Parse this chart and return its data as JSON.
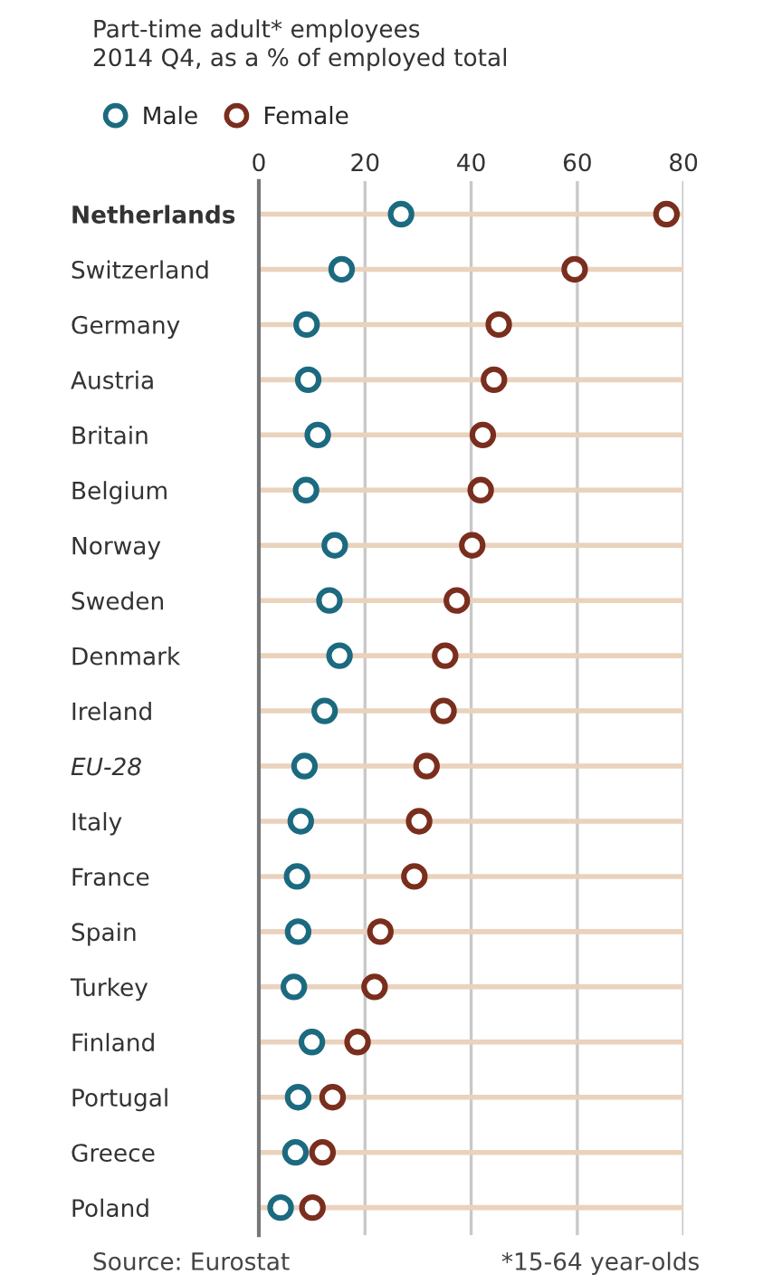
{
  "chart_data": {
    "type": "scatter",
    "subtitle": "Part-time adult* employees\n2014 Q4, as a % of employed total",
    "orientation": "horizontal",
    "categories": [
      "Netherlands",
      "Switzerland",
      "Germany",
      "Austria",
      "Britain",
      "Belgium",
      "Norway",
      "Sweden",
      "Denmark",
      "Ireland",
      "EU-28",
      "Italy",
      "France",
      "Spain",
      "Turkey",
      "Finland",
      "Portugal",
      "Greece",
      "Poland"
    ],
    "series": [
      {
        "name": "Male",
        "color": "#1b6a80",
        "values": [
          26.8,
          15.6,
          9.0,
          9.3,
          11.1,
          8.9,
          14.3,
          13.3,
          15.2,
          12.4,
          8.6,
          7.9,
          7.2,
          7.4,
          6.6,
          10.0,
          7.4,
          6.9,
          4.1
        ]
      },
      {
        "name": "Female",
        "color": "#7a2e1e",
        "values": [
          76.8,
          59.5,
          45.2,
          44.3,
          42.2,
          41.8,
          40.2,
          37.3,
          35.1,
          34.8,
          31.6,
          30.2,
          29.3,
          22.9,
          21.8,
          18.6,
          13.9,
          12.0,
          10.1
        ]
      }
    ],
    "xlim": [
      0,
      80
    ],
    "xticks": [
      0,
      20,
      40,
      60,
      80
    ],
    "grid": true,
    "legend": "top left",
    "marker": "circle",
    "annotations": [
      "Source: Eurostat",
      "*15-64 year-olds"
    ]
  }
}
